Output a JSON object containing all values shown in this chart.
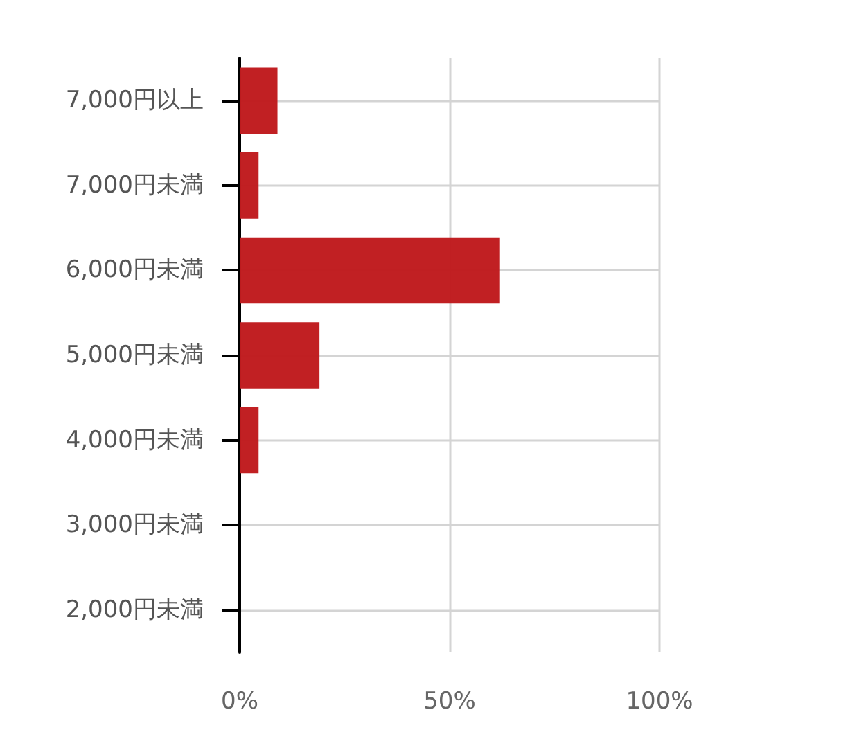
{
  "chart_data": {
    "type": "bar",
    "orientation": "horizontal",
    "categories": [
      "7,000円以上",
      "7,000円未満",
      "6,000円未満",
      "5,000円未満",
      "4,000円未満",
      "3,000円未満",
      "2,000円未満"
    ],
    "values": [
      9,
      4.5,
      62,
      19,
      4.5,
      0,
      0
    ],
    "color": "#c01c1f",
    "xlim": [
      0,
      100
    ],
    "xticks": [
      {
        "value": 0,
        "label": "0%"
      },
      {
        "value": 50,
        "label": "50%"
      },
      {
        "value": 100,
        "label": "100%"
      }
    ],
    "grid": true
  }
}
